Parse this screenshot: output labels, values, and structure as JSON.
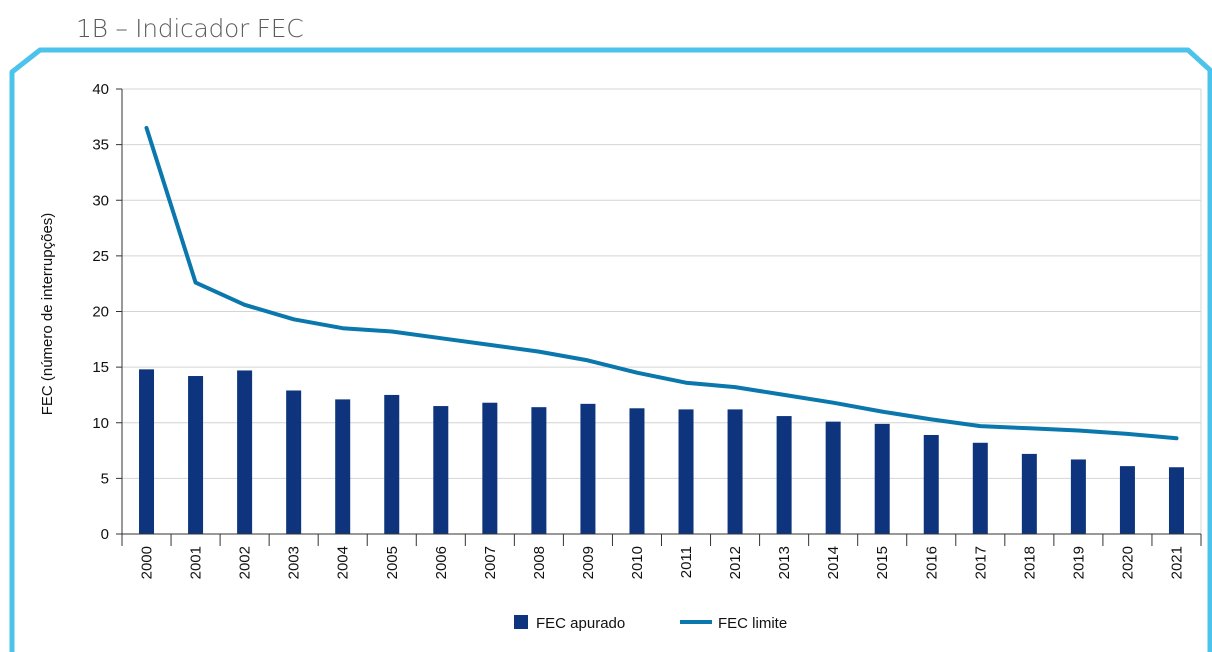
{
  "page": {
    "title": "1B – Indicador FEC"
  },
  "colors": {
    "frame": "#4cc3ea",
    "bar": "#0d347c",
    "line": "#0a77ad",
    "grid": "#d4d4d4",
    "axis": "#333333",
    "text": "#111111"
  },
  "chart_data": {
    "type": "bar",
    "title": "",
    "xlabel": "",
    "ylabel": "FEC (número de interrupções)",
    "ylim": [
      0,
      40
    ],
    "yticks": [
      0,
      5,
      10,
      15,
      20,
      25,
      30,
      35,
      40
    ],
    "grid": true,
    "legend_position": "bottom",
    "categories": [
      "2000",
      "2001",
      "2002",
      "2003",
      "2004",
      "2005",
      "2006",
      "2007",
      "2008",
      "2009",
      "2010",
      "2011",
      "2012",
      "2013",
      "2014",
      "2015",
      "2016",
      "2017",
      "2018",
      "2019",
      "2020",
      "2021"
    ],
    "series": [
      {
        "name": "FEC apurado",
        "type": "bar",
        "values": [
          14.8,
          14.2,
          14.7,
          12.9,
          12.1,
          12.5,
          11.5,
          11.8,
          11.4,
          11.7,
          11.3,
          11.2,
          11.2,
          10.6,
          10.1,
          9.9,
          8.9,
          8.2,
          7.2,
          6.7,
          6.1,
          6.0
        ]
      },
      {
        "name": "FEC limite",
        "type": "line",
        "values": [
          36.5,
          22.6,
          20.6,
          19.3,
          18.5,
          18.2,
          17.6,
          17.0,
          16.4,
          15.6,
          14.5,
          13.6,
          13.2,
          12.5,
          11.8,
          11.0,
          10.3,
          9.7,
          9.5,
          9.3,
          9.0,
          8.6
        ]
      }
    ]
  }
}
